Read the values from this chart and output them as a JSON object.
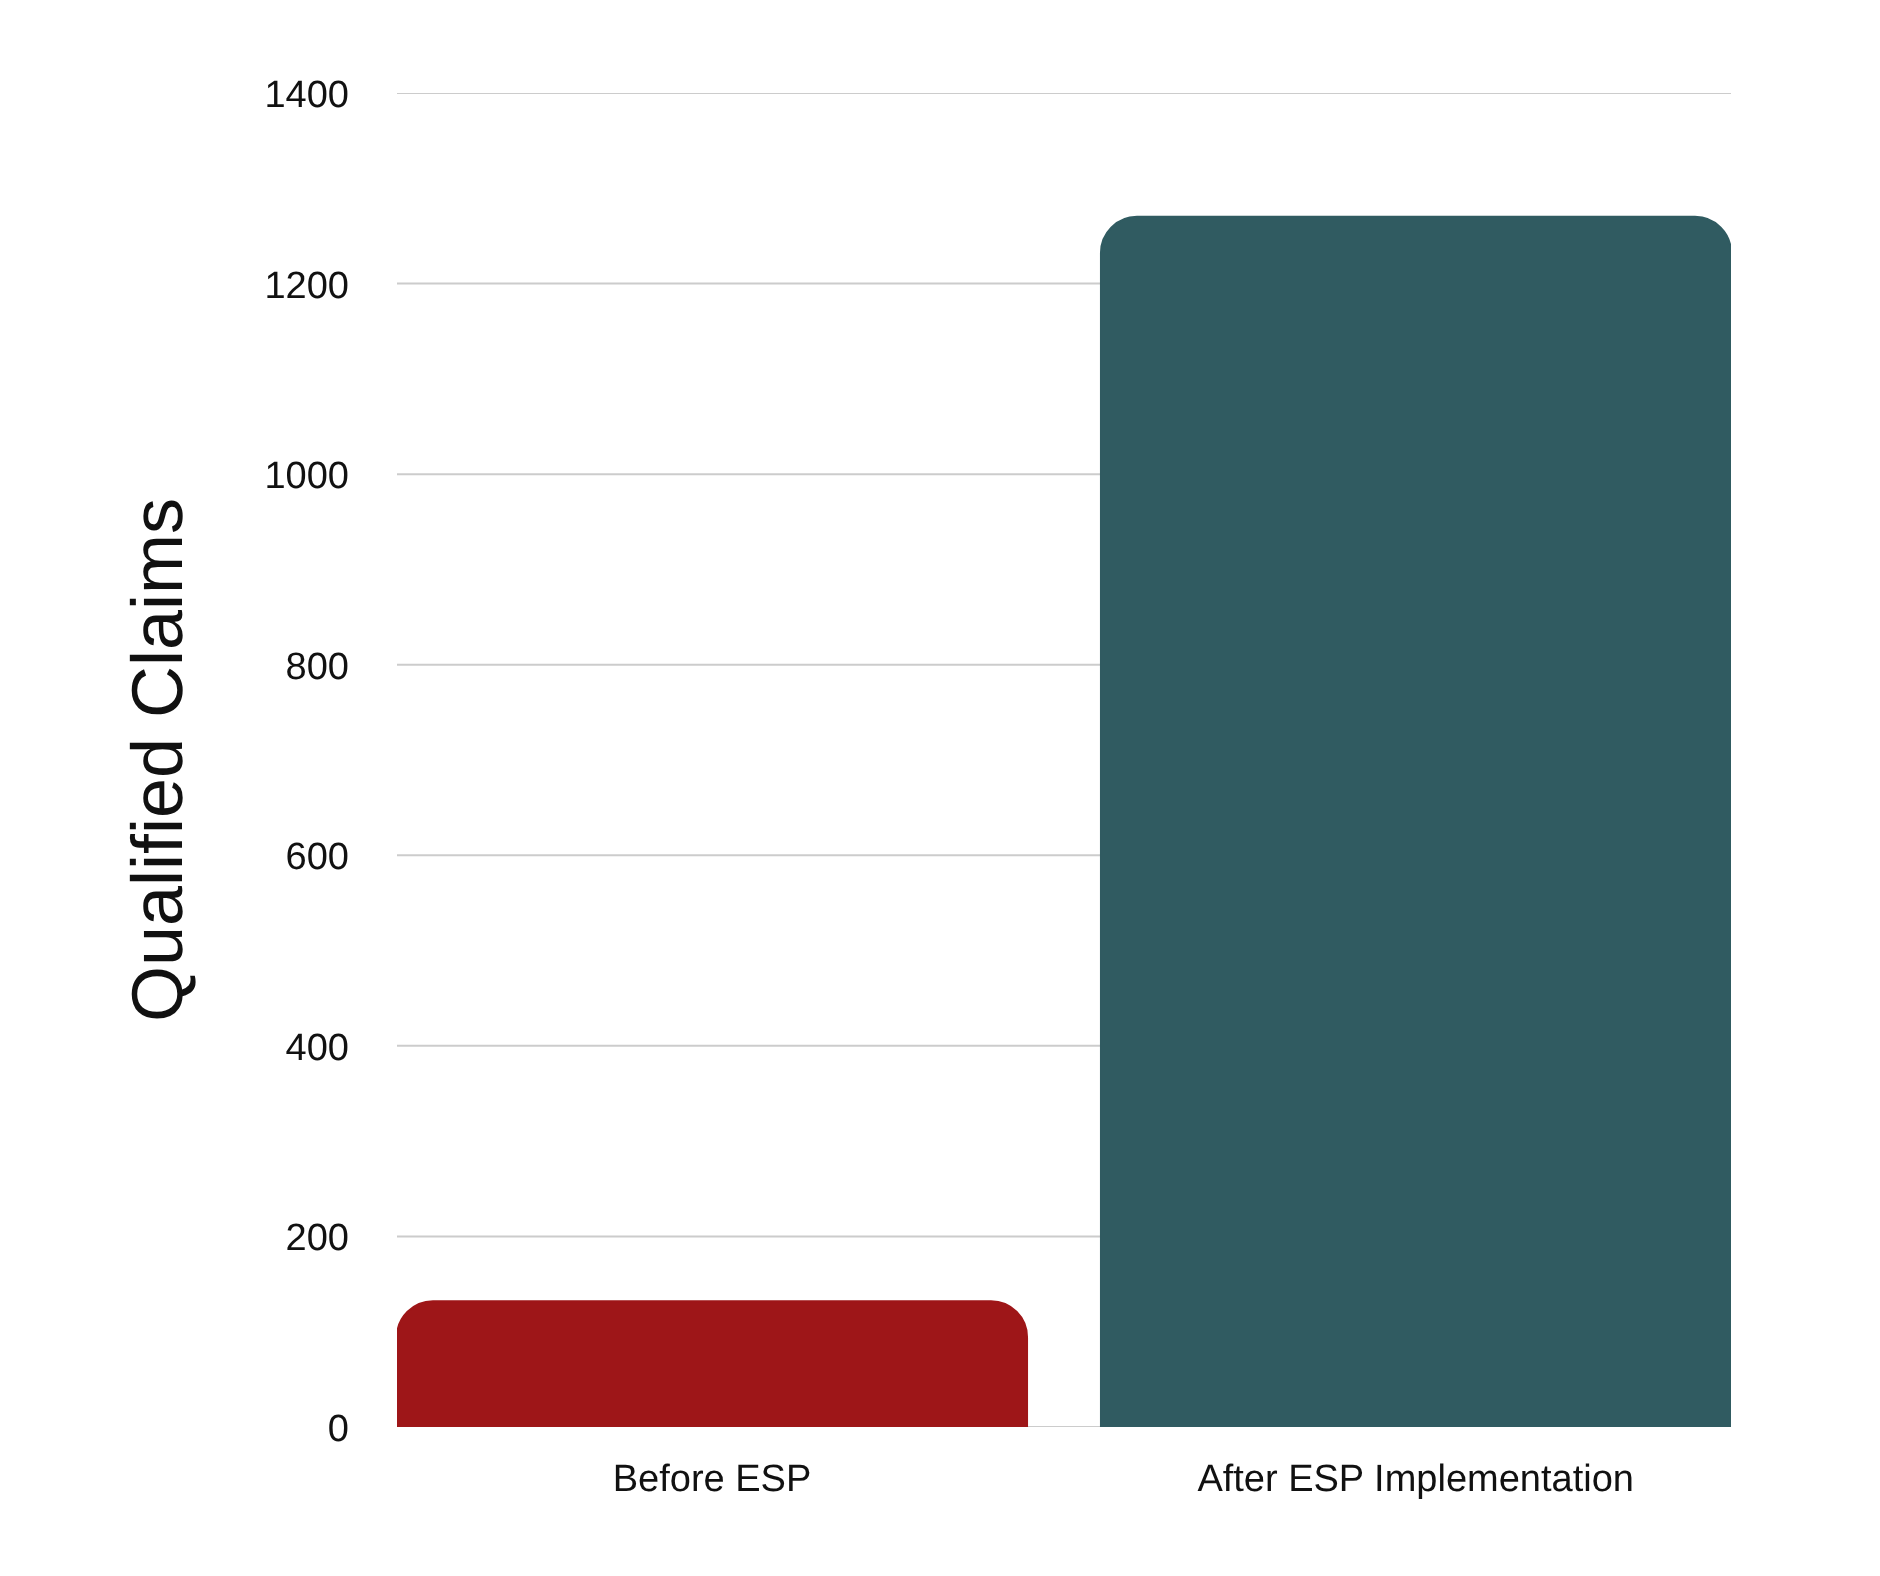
{
  "chart_data": {
    "type": "bar",
    "ylabel": "Qualified Claims",
    "categories": [
      "Before ESP",
      "After ESP Implementation"
    ],
    "values": [
      132,
      1270
    ],
    "colors": [
      "#9e1618",
      "#305b61"
    ],
    "ylim": [
      0,
      1400
    ],
    "yticks": [
      0,
      200,
      400,
      600,
      800,
      1000,
      1200,
      1400
    ],
    "grid": "y"
  }
}
